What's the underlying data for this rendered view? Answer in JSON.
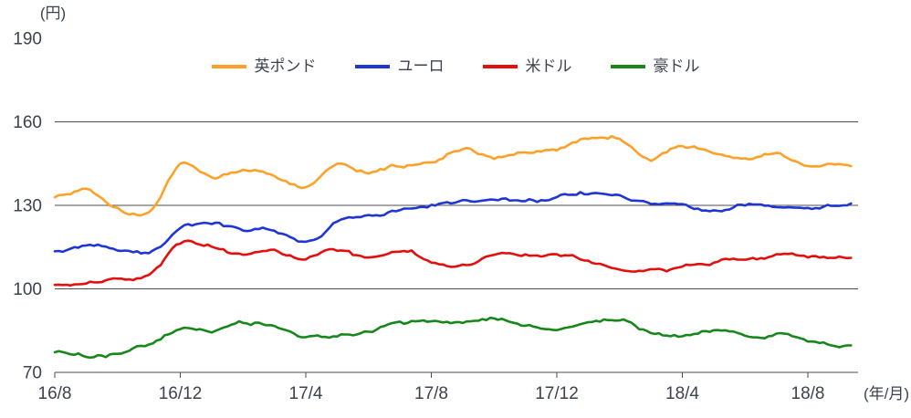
{
  "chart_data": {
    "type": "line",
    "title": "",
    "ylabel": "(円)",
    "xlabel": "(年/月)",
    "ylim": [
      70,
      190
    ],
    "y_ticks": [
      70,
      100,
      130,
      160,
      190
    ],
    "x_tick_labels": [
      "16/8",
      "16/12",
      "17/4",
      "17/8",
      "17/12",
      "18/4",
      "18/8"
    ],
    "grid": true,
    "legend_position": "top-center",
    "months": [
      "16/8",
      "16/9",
      "16/10",
      "16/11",
      "16/12",
      "17/1",
      "17/2",
      "17/3",
      "17/4",
      "17/5",
      "17/6",
      "17/7",
      "17/8",
      "17/9",
      "17/10",
      "17/11",
      "17/12",
      "18/1",
      "18/2",
      "18/3",
      "18/4",
      "18/5",
      "18/6",
      "18/7",
      "18/8",
      "18/9"
    ],
    "series": [
      {
        "name": "英ポンド",
        "color": "#ffa028",
        "values": [
          133,
          135,
          128,
          128.5,
          145,
          140,
          143,
          141,
          137,
          146,
          143,
          144,
          145,
          151,
          147,
          150,
          150,
          153,
          154,
          146,
          151,
          148,
          146,
          148,
          144,
          145
        ]
      },
      {
        "name": "ユーロ",
        "color": "#1f35d4",
        "values": [
          113,
          115,
          114,
          112.5,
          121.5,
          122.5,
          120.5,
          121.5,
          117,
          124,
          125,
          127.5,
          129.5,
          131.5,
          132,
          132.5,
          133.5,
          134.5,
          135,
          131.5,
          130.5,
          127.5,
          130,
          128.5,
          127.5,
          130
        ]
      },
      {
        "name": "米ドル",
        "color": "#e60d0d",
        "values": [
          101.5,
          102,
          103,
          105,
          116.5,
          115.5,
          112.5,
          113.5,
          110.5,
          113.5,
          110.5,
          113,
          110,
          108.5,
          112.5,
          113,
          113,
          111,
          107.5,
          106,
          107.5,
          109.5,
          110,
          111,
          111,
          111.5
        ]
      },
      {
        "name": "豪ドル",
        "color": "#17871b",
        "values": [
          77,
          76.5,
          77.5,
          81,
          85.5,
          85,
          86.5,
          86.5,
          84,
          83.5,
          84.5,
          87.5,
          88,
          87,
          88.5,
          87,
          85.5,
          87,
          88.5,
          84.5,
          83.5,
          84.5,
          82.5,
          83.5,
          82,
          80.5
        ]
      }
    ]
  }
}
